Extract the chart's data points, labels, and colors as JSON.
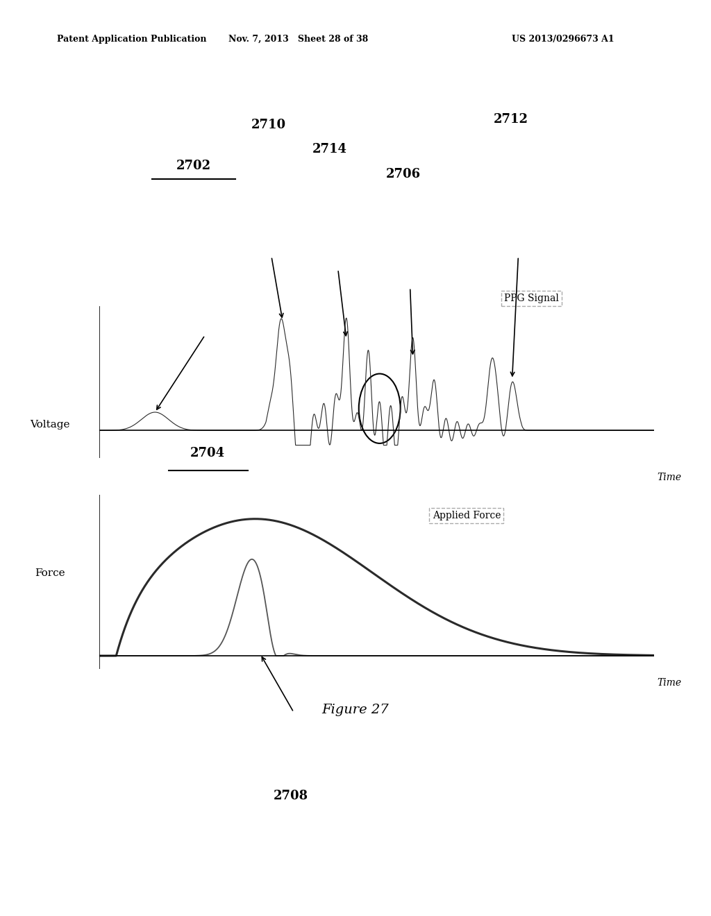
{
  "background_color": "#ffffff",
  "header_left": "Patent Application Publication",
  "header_mid": "Nov. 7, 2013   Sheet 28 of 38",
  "header_right": "US 2013/0296673 A1",
  "figure_caption": "Figure 27",
  "top_plot": {
    "ylabel": "Voltage",
    "xlabel": "Time",
    "label_2702": "2702",
    "label_2710": "2710",
    "label_2714": "2714",
    "label_2706": "2706",
    "label_2712": "2712",
    "legend_text": "PPG Signal"
  },
  "bottom_plot": {
    "ylabel": "Force",
    "xlabel": "Time",
    "label_2704": "2704",
    "label_2708": "2708",
    "legend_text": "Applied Force"
  }
}
